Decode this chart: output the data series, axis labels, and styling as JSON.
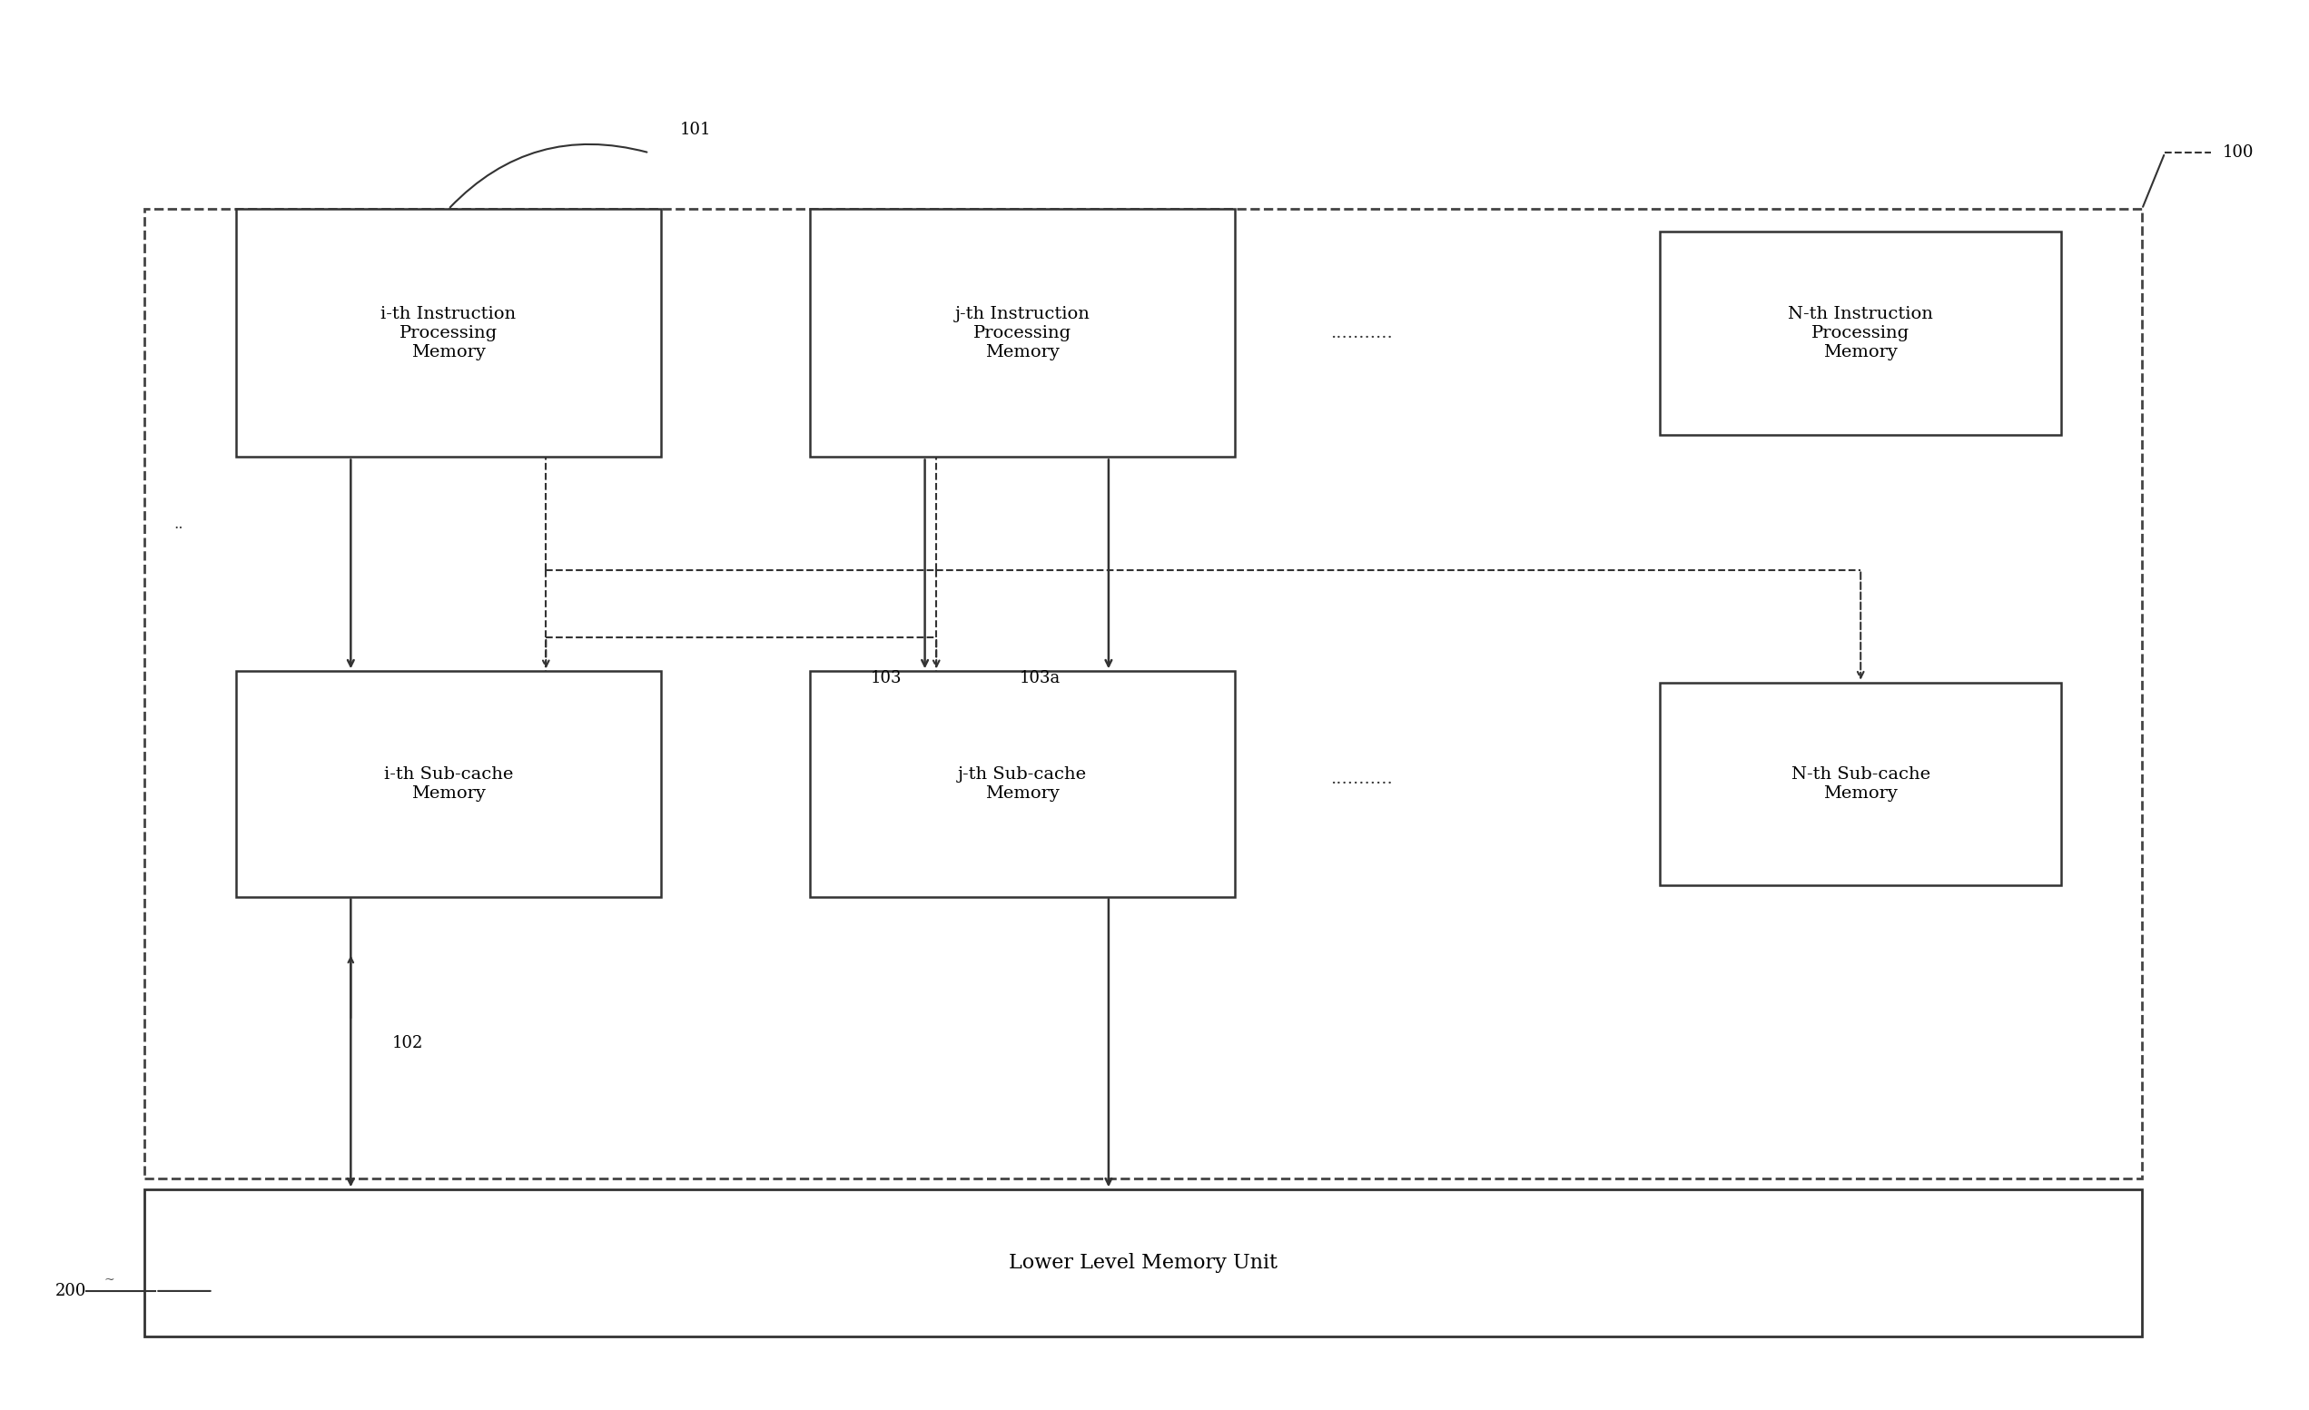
{
  "fig_width": 25.43,
  "fig_height": 15.53,
  "bg_color": "#ffffff",
  "label_100": "100",
  "label_101": "101",
  "label_102": "102",
  "label_103": "103",
  "label_103a": "103a",
  "label_200": "200",
  "box_ipm_text": "i-th Instruction\nProcessing\nMemory",
  "box_jpm_text": "j-th Instruction\nProcessing\nMemory",
  "box_npm_text": "N-th Instruction\nProcessing\nMemory",
  "box_iscm_text": "i-th Sub-cache\nMemory",
  "box_jscm_text": "j-th Sub-cache\nMemory",
  "box_nscm_text": "N-th Sub-cache\nMemory",
  "box_llmu_text": "Lower Level Memory Unit",
  "dots_top": "...........",
  "dots_mid": "...........",
  "dots2_top": "..",
  "font_size_box": 14,
  "font_size_label": 13,
  "line_color": "#333333",
  "dashed_outer_box_color": "#333333"
}
